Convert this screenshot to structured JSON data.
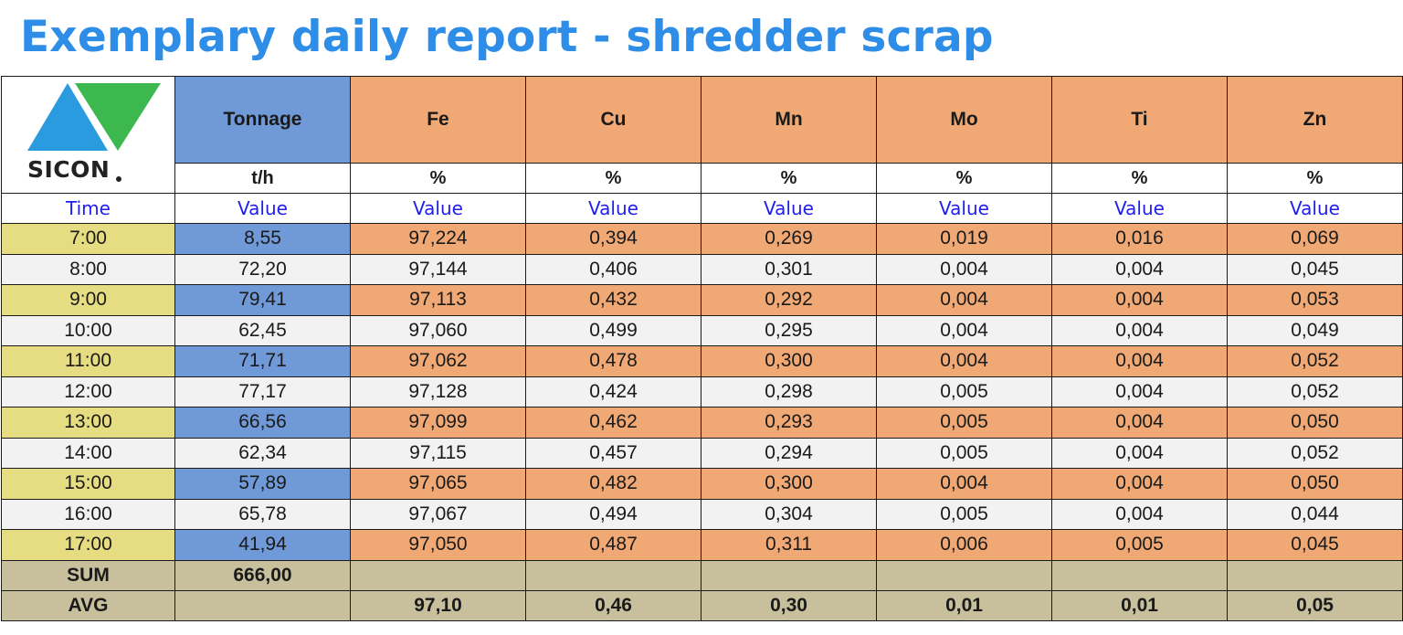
{
  "title": "Exemplary daily report - shredder scrap",
  "logo": {
    "text": "SICON",
    "colors": {
      "triangle_blue": "#2b9be0",
      "triangle_green": "#3db84e"
    }
  },
  "headers": {
    "tonnage": "Tonnage",
    "elements": [
      "Fe",
      "Cu",
      "Mn",
      "Mo",
      "Ti",
      "Zn"
    ]
  },
  "units": {
    "tonnage": "t/h",
    "elements": [
      "%",
      "%",
      "%",
      "%",
      "%",
      "%"
    ]
  },
  "value_header": {
    "time": "Time",
    "labels": [
      "Value",
      "Value",
      "Value",
      "Value",
      "Value",
      "Value",
      "Value"
    ]
  },
  "rows": [
    {
      "time": "7:00",
      "tonnage": "8,55",
      "values": [
        "97,224",
        "0,394",
        "0,269",
        "0,019",
        "0,016",
        "0,069"
      ]
    },
    {
      "time": "8:00",
      "tonnage": "72,20",
      "values": [
        "97,144",
        "0,406",
        "0,301",
        "0,004",
        "0,004",
        "0,045"
      ]
    },
    {
      "time": "9:00",
      "tonnage": "79,41",
      "values": [
        "97,113",
        "0,432",
        "0,292",
        "0,004",
        "0,004",
        "0,053"
      ]
    },
    {
      "time": "10:00",
      "tonnage": "62,45",
      "values": [
        "97,060",
        "0,499",
        "0,295",
        "0,004",
        "0,004",
        "0,049"
      ]
    },
    {
      "time": "11:00",
      "tonnage": "71,71",
      "values": [
        "97,062",
        "0,478",
        "0,300",
        "0,004",
        "0,004",
        "0,052"
      ]
    },
    {
      "time": "12:00",
      "tonnage": "77,17",
      "values": [
        "97,128",
        "0,424",
        "0,298",
        "0,005",
        "0,004",
        "0,052"
      ]
    },
    {
      "time": "13:00",
      "tonnage": "66,56",
      "values": [
        "97,099",
        "0,462",
        "0,293",
        "0,005",
        "0,004",
        "0,050"
      ]
    },
    {
      "time": "14:00",
      "tonnage": "62,34",
      "values": [
        "97,115",
        "0,457",
        "0,294",
        "0,005",
        "0,004",
        "0,052"
      ]
    },
    {
      "time": "15:00",
      "tonnage": "57,89",
      "values": [
        "97,065",
        "0,482",
        "0,300",
        "0,004",
        "0,004",
        "0,050"
      ]
    },
    {
      "time": "16:00",
      "tonnage": "65,78",
      "values": [
        "97,067",
        "0,494",
        "0,304",
        "0,005",
        "0,004",
        "0,044"
      ]
    },
    {
      "time": "17:00",
      "tonnage": "41,94",
      "values": [
        "97,050",
        "0,487",
        "0,311",
        "0,006",
        "0,005",
        "0,045"
      ]
    }
  ],
  "sum": {
    "label": "SUM",
    "tonnage": "666,00",
    "values": [
      "",
      "",
      "",
      "",
      "",
      ""
    ]
  },
  "avg": {
    "label": "AVG",
    "tonnage": "",
    "values": [
      "97,10",
      "0,46",
      "0,30",
      "0,01",
      "0,01",
      "0,05"
    ]
  },
  "colors": {
    "title": "#2e8de6",
    "tonnage_fill": "#7099d8",
    "element_fill": "#f0a874",
    "time_fill": "#e6dc82",
    "alt_row_fill": "#f2f2f2",
    "footer_fill": "#c8c09c",
    "value_header_text": "#1e1ef0"
  }
}
